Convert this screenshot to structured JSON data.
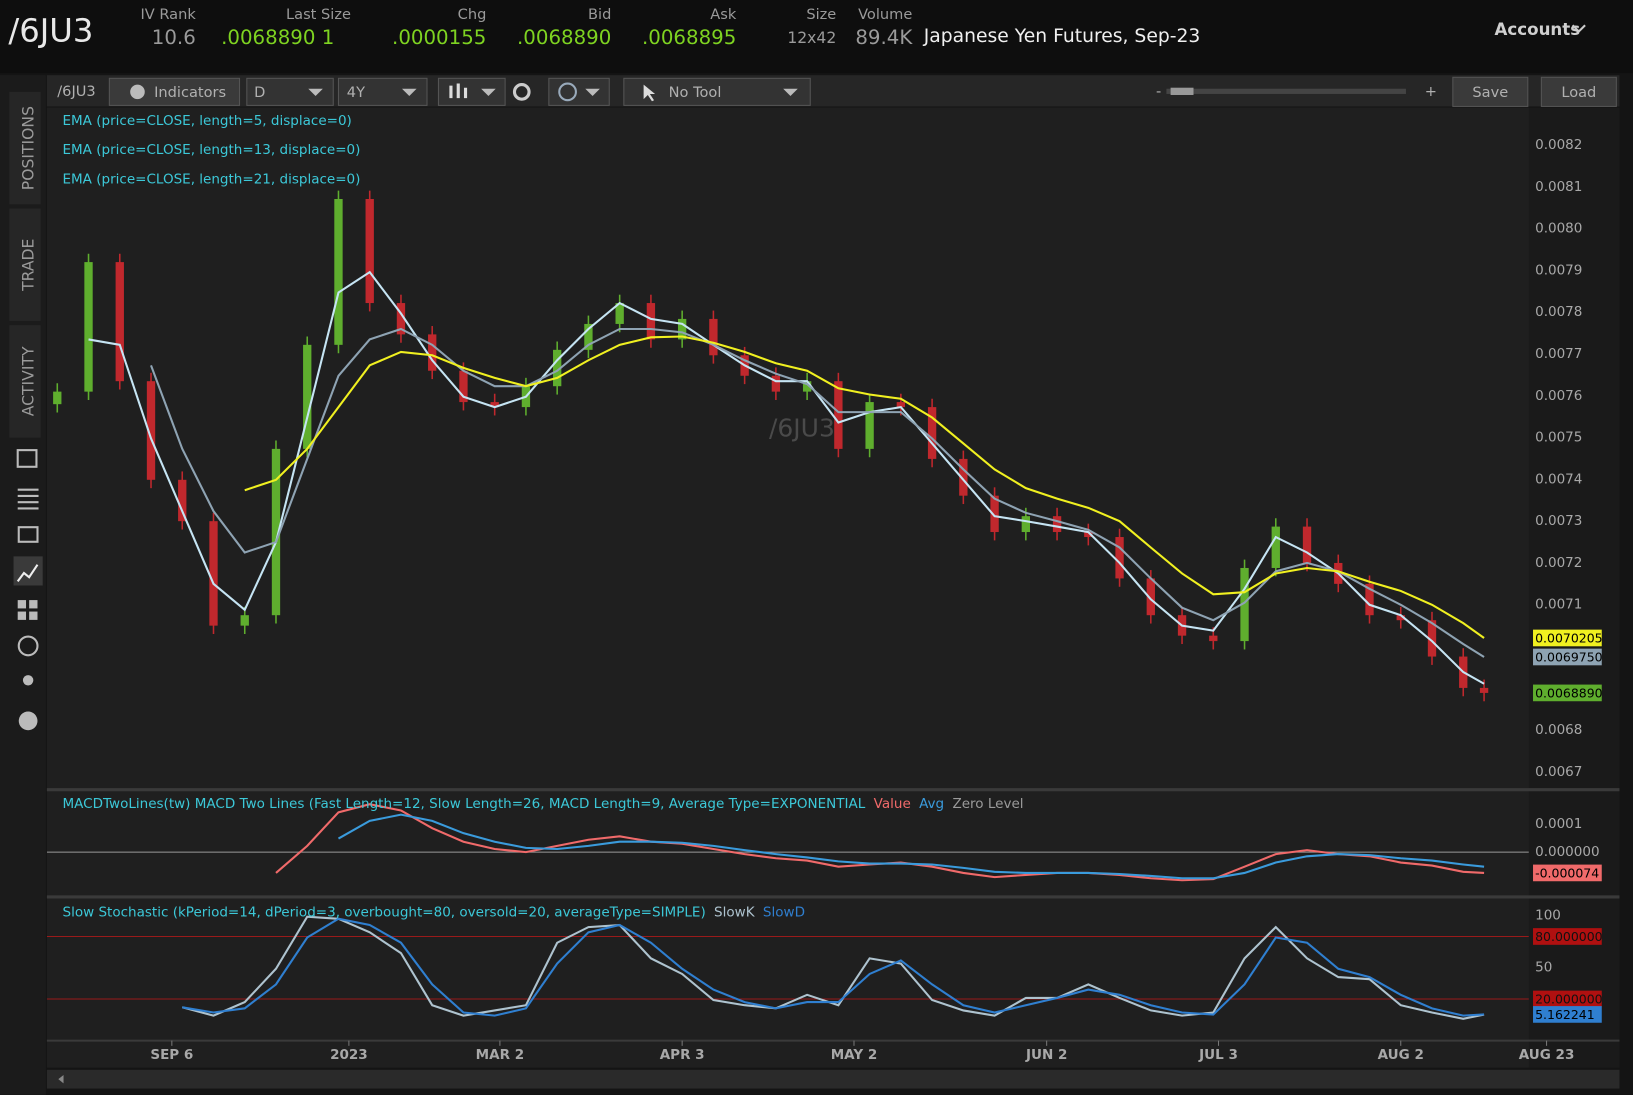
{
  "header": {
    "symbol": "/6JU3",
    "fields": [
      {
        "label": "IV Rank",
        "value": "10.6"
      },
      {
        "label": "Last Size",
        "value": ".0068890 1"
      },
      {
        "label": "Chg",
        "value": ".0000155"
      },
      {
        "label": "Bid",
        "value": ".0068890"
      },
      {
        "label": "Ask",
        "value": ".0068895"
      },
      {
        "label": "Size",
        "value": "12x42"
      },
      {
        "label": "Volume",
        "value": "89.4K"
      }
    ],
    "description": "Japanese Yen Futures, Sep-23",
    "accounts": "Accounts"
  },
  "toolbar": {
    "symbol": "/6JU3",
    "indicators": "Indicators",
    "aggregation": "D",
    "range": "4Y",
    "tool": "No Tool",
    "minus": "-",
    "plus": "+",
    "save": "Save",
    "load": "Load"
  },
  "sidebar": {
    "tabs": [
      "POSITIONS",
      "TRADE",
      "ACTIVITY"
    ]
  },
  "chart_data": [
    {
      "type": "candlestick",
      "watermark": "/6JU3",
      "up_color": "#5fae2e",
      "down_color": "#c0282d",
      "x": [
        2,
        8,
        14,
        20,
        26,
        32,
        38,
        44,
        50,
        56,
        62,
        68,
        74,
        80,
        86,
        92,
        98,
        104,
        110,
        116,
        122,
        128,
        134,
        140,
        146,
        152,
        158,
        164,
        170,
        176,
        182,
        188,
        194,
        200,
        206,
        212,
        218,
        224,
        230,
        236,
        242,
        248,
        254,
        260,
        266,
        272,
        276
      ],
      "open": [
        0.00758,
        0.00761,
        0.00792,
        0.007635,
        0.007399,
        0.0073,
        0.00705,
        0.007075,
        0.007473,
        0.007722,
        0.008071,
        0.007822,
        0.007747,
        0.00766,
        0.007585,
        0.007573,
        0.007623,
        0.00771,
        0.007772,
        0.007822,
        0.007735,
        0.007784,
        0.007697,
        0.007648,
        0.00761,
        0.007635,
        0.007473,
        0.007585,
        0.007573,
        0.007449,
        0.007361,
        0.007274,
        0.007312,
        0.007274,
        0.007262,
        0.007163,
        0.007075,
        0.007026,
        0.007013,
        0.007188,
        0.007287,
        0.0072,
        0.00715,
        0.007075,
        0.007063,
        0.006976,
        0.006901
      ],
      "high": [
        0.00763,
        0.00794,
        0.00794,
        0.007655,
        0.007419,
        0.00732,
        0.007095,
        0.007493,
        0.007742,
        0.008091,
        0.008091,
        0.007842,
        0.007767,
        0.00768,
        0.007605,
        0.007643,
        0.00773,
        0.007792,
        0.007842,
        0.007842,
        0.007804,
        0.007804,
        0.007717,
        0.007668,
        0.007655,
        0.007655,
        0.007605,
        0.007605,
        0.007593,
        0.007469,
        0.007381,
        0.007332,
        0.007332,
        0.007294,
        0.007282,
        0.007183,
        0.007095,
        0.007046,
        0.007208,
        0.007307,
        0.007307,
        0.00722,
        0.00717,
        0.007095,
        0.007083,
        0.006996,
        0.006921
      ],
      "low": [
        0.00756,
        0.00759,
        0.007615,
        0.007379,
        0.00728,
        0.00703,
        0.00703,
        0.007055,
        0.007453,
        0.007702,
        0.007802,
        0.007727,
        0.00764,
        0.007565,
        0.007553,
        0.007553,
        0.007603,
        0.00769,
        0.007752,
        0.007715,
        0.007715,
        0.007677,
        0.007628,
        0.00759,
        0.00759,
        0.007453,
        0.007453,
        0.007553,
        0.007429,
        0.007341,
        0.007254,
        0.007254,
        0.007254,
        0.007242,
        0.007143,
        0.007055,
        0.007006,
        0.006993,
        0.006993,
        0.007168,
        0.00718,
        0.00713,
        0.007055,
        0.007043,
        0.006956,
        0.006881,
        0.006869
      ],
      "close": [
        0.00761,
        0.00792,
        0.007635,
        0.007399,
        0.0073,
        0.00705,
        0.007075,
        0.007473,
        0.007722,
        0.008071,
        0.007822,
        0.007747,
        0.00766,
        0.007585,
        0.007573,
        0.007623,
        0.00771,
        0.007772,
        0.007822,
        0.007735,
        0.007784,
        0.007697,
        0.007648,
        0.00761,
        0.007635,
        0.007473,
        0.007585,
        0.007573,
        0.007449,
        0.007361,
        0.007274,
        0.007312,
        0.007274,
        0.007262,
        0.007163,
        0.007075,
        0.007026,
        0.007013,
        0.007188,
        0.007287,
        0.0072,
        0.00715,
        0.007075,
        0.007063,
        0.006976,
        0.006901,
        0.006889
      ],
      "close_last_label": "0.0068890",
      "series": [
        {
          "name": "EMA (price=CLOSE, length=5, displace=0)",
          "color": "#c5e4f3",
          "values": [
            null,
            0.007735,
            0.007722,
            0.007498,
            0.007324,
            0.00715,
            0.007088,
            0.00725,
            0.007548,
            0.007847,
            0.007896,
            0.007797,
            0.007685,
            0.007598,
            0.007573,
            0.007598,
            0.007685,
            0.00776,
            0.007822,
            0.007784,
            0.007772,
            0.007722,
            0.007673,
            0.007635,
            0.007635,
            0.007536,
            0.007561,
            0.007573,
            0.007486,
            0.007399,
            0.007312,
            0.0073,
            0.007287,
            0.007274,
            0.0072,
            0.007113,
            0.00705,
            0.007038,
            0.007138,
            0.007262,
            0.007225,
            0.007175,
            0.0071,
            0.007075,
            0.007013,
            0.006939,
            0.006911
          ]
        },
        {
          "name": "EMA (price=CLOSE, length=13, displace=0)",
          "color": "#8ea3b3",
          "last_label": "0.0069750",
          "values": [
            null,
            null,
            null,
            0.007673,
            0.007473,
            0.007324,
            0.007225,
            0.00725,
            0.007449,
            0.007648,
            0.007735,
            0.00776,
            0.007722,
            0.00766,
            0.007623,
            0.007623,
            0.00766,
            0.007722,
            0.00776,
            0.00776,
            0.007752,
            0.007722,
            0.007685,
            0.007653,
            0.007628,
            0.007561,
            0.007561,
            0.007561,
            0.007498,
            0.007424,
            0.007354,
            0.00732,
            0.0073,
            0.007279,
            0.007237,
            0.007163,
            0.007093,
            0.007063,
            0.007105,
            0.00718,
            0.0072,
            0.00718,
            0.007138,
            0.0071,
            0.007056,
            0.007006,
            0.006975
          ]
        },
        {
          "name": "EMA (price=CLOSE, length=21, displace=0)",
          "color": "#f0f020",
          "last_label": "0.0070205",
          "values": [
            null,
            null,
            null,
            null,
            null,
            null,
            0.007374,
            0.007399,
            0.007473,
            0.007573,
            0.007673,
            0.007705,
            0.007697,
            0.007667,
            0.007643,
            0.007623,
            0.007643,
            0.007685,
            0.007722,
            0.00774,
            0.007742,
            0.007727,
            0.007705,
            0.007678,
            0.00766,
            0.007618,
            0.007603,
            0.007593,
            0.007548,
            0.007486,
            0.007424,
            0.007379,
            0.007354,
            0.007332,
            0.0073,
            0.007237,
            0.007175,
            0.007125,
            0.00713,
            0.007175,
            0.007188,
            0.00718,
            0.007155,
            0.007133,
            0.0071,
            0.007056,
            0.0070205
          ]
        }
      ],
      "xlim": [
        0,
        290
      ],
      "ylim": [
        0.006665,
        0.00829
      ],
      "yticks": [
        0.0082,
        0.0081,
        {
          "value": 0.008,
          "label": "0.0080"
        },
        0.0079,
        0.0078,
        0.0077,
        0.0076,
        0.0075,
        0.0074,
        0.0073,
        0.0072,
        0.0071,
        0.0068,
        0.0067
      ],
      "xticks": [
        {
          "value": 24,
          "label": "SEP 6"
        },
        {
          "value": 58,
          "label": "2023"
        },
        {
          "value": 87,
          "label": "MAR 2"
        },
        {
          "value": 122,
          "label": "APR 3"
        },
        {
          "value": 155,
          "label": "MAY 2"
        },
        {
          "value": 192,
          "label": "JUN 2"
        },
        {
          "value": 225,
          "label": "JUL 3"
        },
        {
          "value": 260,
          "label": "AUG 2"
        },
        {
          "value": 288,
          "label": "AUG 23"
        }
      ]
    },
    {
      "type": "line",
      "title": "MACDTwoLines(tw) MACD Two Lines (Fast Length=12, Slow Length=26, MACD Length=9, Average Type=EXPONENTIAL",
      "series": [
        {
          "name": "Value",
          "color": "#f06a6a",
          "last_label": "-0.000074",
          "values": [
            null,
            null,
            null,
            null,
            null,
            null,
            null,
            -7.4e-05,
            2.2e-05,
            0.000141,
            0.00017,
            0.000148,
            8.5e-05,
            3.7e-05,
            1.1e-05,
            0,
            2.2e-05,
            4.4e-05,
            5.6e-05,
            3.7e-05,
            3e-05,
            1.1e-05,
            -7e-06,
            -2.2e-05,
            -3e-05,
            -5.2e-05,
            -4.4e-05,
            -3.7e-05,
            -5.2e-05,
            -7.4e-05,
            -8.9e-05,
            -8.1e-05,
            -7.4e-05,
            -7.4e-05,
            -8.1e-05,
            -9.3e-05,
            -0.0001,
            -9.6e-05,
            -5.2e-05,
            -7e-06,
            7e-06,
            -7e-06,
            -1.5e-05,
            -3.7e-05,
            -4.8e-05,
            -7e-05,
            -7.4e-05
          ]
        },
        {
          "name": "Avg",
          "color": "#3a9bdc",
          "values": [
            null,
            null,
            null,
            null,
            null,
            null,
            null,
            null,
            null,
            4.8e-05,
            0.000111,
            0.000133,
            0.000111,
            6.7e-05,
            3.7e-05,
            1.5e-05,
            1.1e-05,
            2.2e-05,
            3.7e-05,
            3.7e-05,
            3.3e-05,
            2.2e-05,
            7e-06,
            -7e-06,
            -1.9e-05,
            -3.3e-05,
            -4.1e-05,
            -4.1e-05,
            -4.4e-05,
            -5.6e-05,
            -7e-05,
            -7.4e-05,
            -7.4e-05,
            -7.4e-05,
            -7.8e-05,
            -8.5e-05,
            -9.3e-05,
            -9.3e-05,
            -7.4e-05,
            -3.7e-05,
            -1.5e-05,
            -7e-06,
            -1.1e-05,
            -2.2e-05,
            -3e-05,
            -4.4e-05,
            -5.2e-05
          ]
        }
      ],
      "zero_level": {
        "name": "Zero Level",
        "value": 0,
        "color": "#9a9a9a"
      },
      "ylim": [
        -0.000137,
        0.000207
      ],
      "yticks": [
        0.0001,
        {
          "value": 0,
          "label": "0.000000"
        }
      ]
    },
    {
      "type": "line",
      "title": "Slow Stochastic (kPeriod=14, dPeriod=3, overbought=80, oversold=20, averageType=SIMPLE)",
      "series": [
        {
          "name": "SlowK",
          "color": "#aec3cf",
          "values": [
            null,
            null,
            null,
            null,
            12,
            4,
            17,
            49,
            99,
            97,
            84,
            64,
            14,
            4,
            9,
            14,
            74,
            89,
            91,
            59,
            44,
            19,
            14,
            11,
            24,
            14,
            59,
            54,
            19,
            9,
            4,
            21,
            21,
            34,
            21,
            9,
            4,
            7,
            59,
            89,
            59,
            41,
            39,
            14,
            7,
            1,
            5
          ]
        },
        {
          "name": "SlowD",
          "color": "#2f7fd0",
          "last_label": "5.162241",
          "values": [
            null,
            null,
            null,
            null,
            12,
            7,
            11,
            34,
            79,
            97,
            91,
            74,
            34,
            7,
            4,
            11,
            54,
            84,
            91,
            74,
            49,
            29,
            17,
            11,
            17,
            17,
            44,
            57,
            34,
            14,
            7,
            14,
            21,
            29,
            24,
            14,
            7,
            5,
            34,
            79,
            74,
            49,
            41,
            24,
            11,
            4,
            5.162241
          ]
        }
      ],
      "overbought": {
        "value": 80,
        "label": "80.000000"
      },
      "oversold": {
        "value": 20,
        "label": "20.000000"
      },
      "ylim": [
        -18,
        113
      ],
      "yticks": [
        100,
        50
      ]
    }
  ]
}
